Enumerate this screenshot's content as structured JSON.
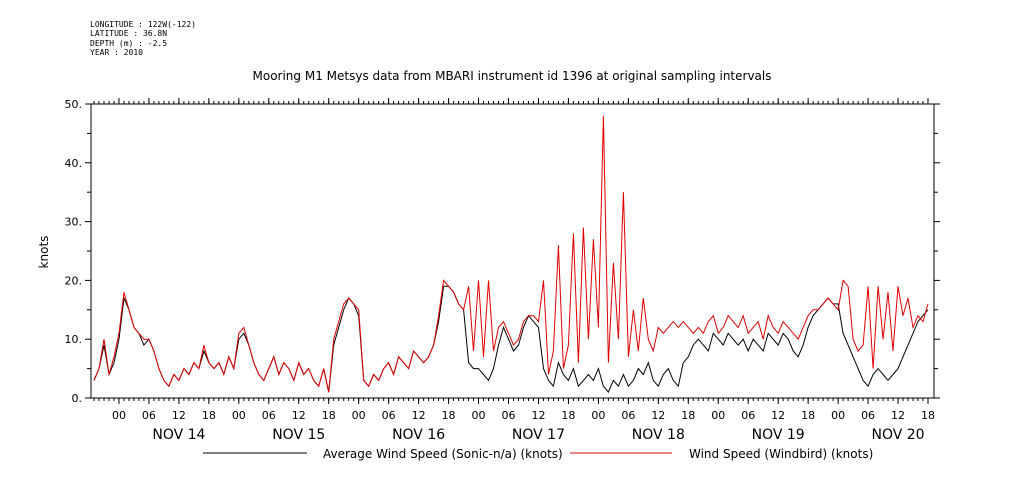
{
  "metadata": {
    "longitude": "LONGITUDE : 122W(-122)",
    "latitude": "LATITUDE : 36.8N",
    "depth": "DEPTH (m) : -2.5",
    "year": "YEAR : 2010"
  },
  "chart_data": {
    "type": "line",
    "title": "Mooring M1 Metsys data from MBARI instrument id 1396 at original sampling intervals",
    "xlabel": "",
    "ylabel": "knots",
    "ylim": [
      0,
      50
    ],
    "yticks": [
      "0.",
      "10.",
      "20.",
      "30.",
      "40.",
      "50."
    ],
    "x_unit": "hours since 2010-11-13 19:00",
    "xlim": [
      0,
      167
    ],
    "hour_ticks": [
      {
        "x": 5,
        "label": "00"
      },
      {
        "x": 11,
        "label": "06"
      },
      {
        "x": 17,
        "label": "12"
      },
      {
        "x": 23,
        "label": "18"
      },
      {
        "x": 29,
        "label": "00"
      },
      {
        "x": 35,
        "label": "06"
      },
      {
        "x": 41,
        "label": "12"
      },
      {
        "x": 47,
        "label": "18"
      },
      {
        "x": 53,
        "label": "00"
      },
      {
        "x": 59,
        "label": "06"
      },
      {
        "x": 65,
        "label": "12"
      },
      {
        "x": 71,
        "label": "18"
      },
      {
        "x": 77,
        "label": "00"
      },
      {
        "x": 83,
        "label": "06"
      },
      {
        "x": 89,
        "label": "12"
      },
      {
        "x": 95,
        "label": "18"
      },
      {
        "x": 101,
        "label": "00"
      },
      {
        "x": 107,
        "label": "06"
      },
      {
        "x": 113,
        "label": "12"
      },
      {
        "x": 119,
        "label": "18"
      },
      {
        "x": 125,
        "label": "00"
      },
      {
        "x": 131,
        "label": "06"
      },
      {
        "x": 137,
        "label": "12"
      },
      {
        "x": 143,
        "label": "18"
      },
      {
        "x": 149,
        "label": "00"
      },
      {
        "x": 155,
        "label": "06"
      },
      {
        "x": 161,
        "label": "12"
      },
      {
        "x": 167,
        "label": "18"
      }
    ],
    "day_labels": [
      {
        "x": 17,
        "label": "NOV 14"
      },
      {
        "x": 41,
        "label": "NOV 15"
      },
      {
        "x": 65,
        "label": "NOV 16"
      },
      {
        "x": 89,
        "label": "NOV 17"
      },
      {
        "x": 113,
        "label": "NOV 18"
      },
      {
        "x": 137,
        "label": "NOV 19"
      },
      {
        "x": 161,
        "label": "NOV 20"
      }
    ],
    "series": [
      {
        "name": "Average Wind Speed (Sonic-n/a) (knots)",
        "color": "#000000",
        "x": [
          0,
          1,
          2,
          3,
          4,
          5,
          6,
          7,
          8,
          9,
          10,
          11,
          12,
          13,
          14,
          15,
          16,
          17,
          18,
          19,
          20,
          21,
          22,
          23,
          24,
          25,
          26,
          27,
          28,
          29,
          30,
          31,
          32,
          33,
          34,
          35,
          36,
          37,
          38,
          39,
          40,
          41,
          42,
          43,
          44,
          45,
          46,
          47,
          48,
          49,
          50,
          51,
          52,
          53,
          54,
          55,
          56,
          57,
          58,
          59,
          60,
          61,
          62,
          63,
          64,
          65,
          66,
          67,
          68,
          69,
          70,
          71,
          72,
          73,
          74,
          75,
          76,
          77,
          78,
          79,
          80,
          81,
          82,
          83,
          84,
          85,
          86,
          87,
          88,
          89,
          90,
          91,
          92,
          93,
          94,
          95,
          96,
          97,
          98,
          99,
          100,
          101,
          102,
          103,
          104,
          105,
          106,
          107,
          108,
          109,
          110,
          111,
          112,
          113,
          114,
          115,
          116,
          117,
          118,
          119,
          120,
          121,
          122,
          123,
          124,
          125,
          126,
          127,
          128,
          129,
          130,
          131,
          132,
          133,
          134,
          135,
          136,
          137,
          138,
          139,
          140,
          141,
          142,
          143,
          144,
          145,
          146,
          147,
          148,
          149,
          150,
          151,
          152,
          153,
          154,
          155,
          156,
          157,
          158,
          159,
          160,
          161,
          162,
          163,
          164,
          165,
          166,
          167
        ],
        "values": [
          3,
          5,
          9,
          4,
          6,
          10,
          17,
          15,
          12,
          11,
          9,
          10,
          8,
          5,
          3,
          2,
          4,
          3,
          5,
          4,
          6,
          5,
          8,
          6,
          5,
          6,
          4,
          7,
          5,
          10,
          11,
          9,
          6,
          4,
          3,
          5,
          7,
          4,
          6,
          5,
          3,
          6,
          4,
          5,
          3,
          2,
          5,
          1,
          9,
          12,
          15,
          17,
          16,
          14,
          3,
          2,
          4,
          3,
          5,
          6,
          4,
          7,
          6,
          5,
          8,
          7,
          6,
          7,
          9,
          13,
          19,
          19,
          18,
          16,
          15,
          6,
          5,
          5,
          4,
          3,
          5,
          9,
          12,
          10,
          8,
          9,
          12,
          14,
          13,
          12,
          5,
          3,
          2,
          6,
          4,
          3,
          5,
          2,
          3,
          4,
          3,
          5,
          2,
          1,
          3,
          2,
          4,
          2,
          3,
          5,
          4,
          6,
          3,
          2,
          4,
          5,
          3,
          2,
          6,
          7,
          9,
          10,
          9,
          8,
          11,
          10,
          9,
          11,
          10,
          9,
          10,
          8,
          10,
          9,
          8,
          11,
          10,
          9,
          11,
          10,
          8,
          7,
          9,
          12,
          14,
          15,
          16,
          17,
          16,
          16,
          11,
          9,
          7,
          5,
          3,
          2,
          4,
          5,
          4,
          3,
          4,
          5,
          7,
          9,
          11,
          13,
          14,
          15
        ]
      },
      {
        "name": "Wind Speed (Windbird) (knots)",
        "color": "#e00000",
        "x": [
          0,
          1,
          2,
          3,
          4,
          5,
          6,
          7,
          8,
          9,
          10,
          11,
          12,
          13,
          14,
          15,
          16,
          17,
          18,
          19,
          20,
          21,
          22,
          23,
          24,
          25,
          26,
          27,
          28,
          29,
          30,
          31,
          32,
          33,
          34,
          35,
          36,
          37,
          38,
          39,
          40,
          41,
          42,
          43,
          44,
          45,
          46,
          47,
          48,
          49,
          50,
          51,
          52,
          53,
          54,
          55,
          56,
          57,
          58,
          59,
          60,
          61,
          62,
          63,
          64,
          65,
          66,
          67,
          68,
          69,
          70,
          71,
          72,
          73,
          74,
          75,
          76,
          77,
          78,
          79,
          80,
          81,
          82,
          83,
          84,
          85,
          86,
          87,
          88,
          89,
          90,
          91,
          92,
          93,
          94,
          95,
          96,
          97,
          98,
          99,
          100,
          101,
          102,
          103,
          104,
          105,
          106,
          107,
          108,
          109,
          110,
          111,
          112,
          113,
          114,
          115,
          116,
          117,
          118,
          119,
          120,
          121,
          122,
          123,
          124,
          125,
          126,
          127,
          128,
          129,
          130,
          131,
          132,
          133,
          134,
          135,
          136,
          137,
          138,
          139,
          140,
          141,
          142,
          143,
          144,
          145,
          146,
          147,
          148,
          149,
          150,
          151,
          152,
          153,
          154,
          155,
          156,
          157,
          158,
          159,
          160,
          161,
          162,
          163,
          164,
          165,
          166,
          167
        ],
        "values": [
          3,
          5,
          10,
          4,
          7,
          11,
          18,
          15,
          12,
          11,
          10,
          10,
          8,
          5,
          3,
          2,
          4,
          3,
          5,
          4,
          6,
          5,
          9,
          6,
          5,
          6,
          4,
          7,
          5,
          11,
          12,
          9,
          6,
          4,
          3,
          5,
          7,
          4,
          6,
          5,
          3,
          6,
          4,
          5,
          3,
          2,
          5,
          1,
          10,
          13,
          16,
          17,
          16,
          15,
          3,
          2,
          4,
          3,
          5,
          6,
          4,
          7,
          6,
          5,
          8,
          7,
          6,
          7,
          9,
          14,
          20,
          19,
          18,
          16,
          15,
          19,
          8,
          20,
          7,
          20,
          8,
          12,
          13,
          11,
          9,
          10,
          13,
          14,
          14,
          13,
          20,
          4,
          8,
          26,
          5,
          9,
          28,
          6,
          29,
          10,
          27,
          12,
          48,
          6,
          23,
          10,
          35,
          7,
          15,
          8,
          17,
          10,
          8,
          12,
          11,
          12,
          13,
          12,
          13,
          12,
          11,
          12,
          11,
          13,
          14,
          11,
          12,
          14,
          13,
          12,
          14,
          11,
          12,
          13,
          10,
          14,
          12,
          11,
          13,
          12,
          11,
          10,
          12,
          14,
          15,
          15,
          16,
          17,
          16,
          15,
          20,
          19,
          10,
          8,
          9,
          19,
          5,
          19,
          10,
          18,
          8,
          19,
          14,
          17,
          12,
          14,
          13,
          16
        ]
      }
    ]
  }
}
